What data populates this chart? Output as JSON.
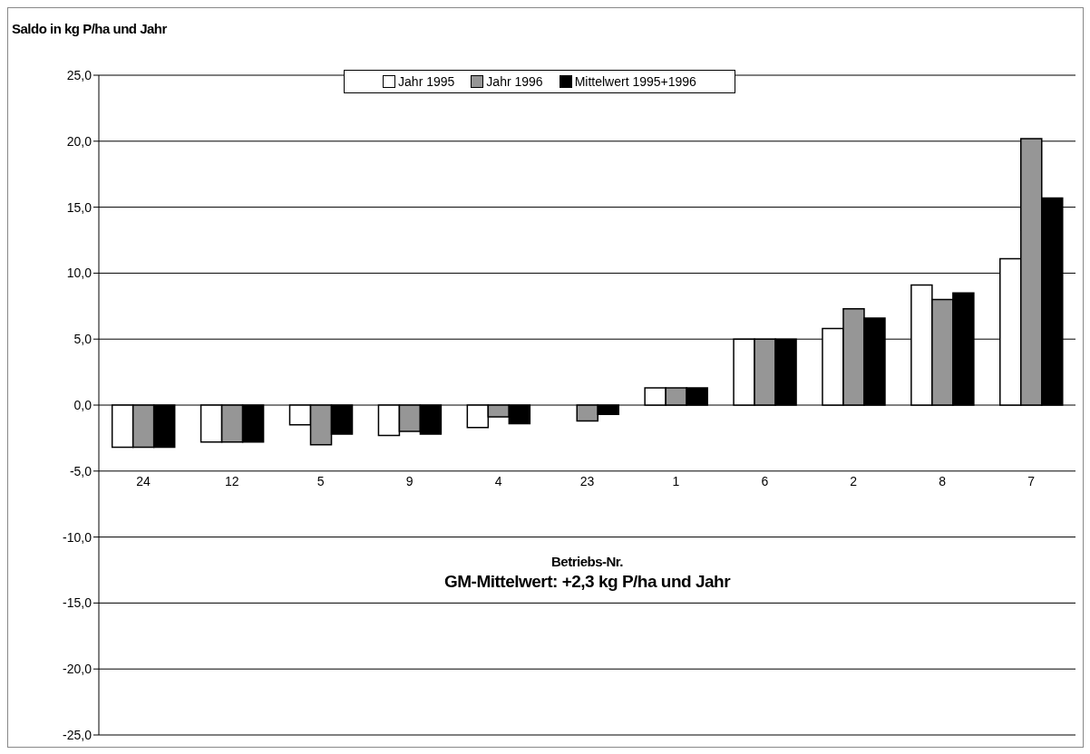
{
  "chart_data": {
    "type": "bar",
    "ylabel": "Saldo in kg P/ha und Jahr",
    "xlabel": "Betriebs-Nr.",
    "categories": [
      "24",
      "12",
      "5",
      "9",
      "4",
      "23",
      "1",
      "6",
      "2",
      "8",
      "7"
    ],
    "series": [
      {
        "name": "Jahr 1995",
        "color": "#ffffff",
        "values": [
          -3.2,
          -2.8,
          -1.5,
          -2.3,
          -1.7,
          0,
          1.3,
          5.0,
          5.8,
          9.1,
          11.1
        ]
      },
      {
        "name": "Jahr 1996",
        "color": "#969696",
        "values": [
          -3.2,
          -2.8,
          -3.0,
          -2.0,
          -0.9,
          -1.2,
          1.3,
          5.0,
          7.3,
          8.0,
          20.2
        ]
      },
      {
        "name": "Mittelwert 1995+1996",
        "color": "#000000",
        "values": [
          -3.2,
          -2.8,
          -2.2,
          -2.2,
          -1.4,
          -0.7,
          1.3,
          5.0,
          6.6,
          8.5,
          15.7
        ]
      }
    ],
    "ylim": [
      -25,
      25
    ],
    "yticks": [
      {
        "value": -25,
        "label": "-25,0"
      },
      {
        "value": -20,
        "label": "-20,0"
      },
      {
        "value": -15,
        "label": "-15,0"
      },
      {
        "value": -10,
        "label": "-10,0"
      },
      {
        "value": -5,
        "label": "-5,0"
      },
      {
        "value": 0,
        "label": "0,0"
      },
      {
        "value": 5,
        "label": "5,0"
      },
      {
        "value": 10,
        "label": "10,0"
      },
      {
        "value": 15,
        "label": "15,0"
      },
      {
        "value": 20,
        "label": "20,0"
      },
      {
        "value": 25,
        "label": "25,0"
      }
    ],
    "grid": "y",
    "legend": "top",
    "annotations": [
      "GM-Mittelwert: +2,3 kg P/ha und Jahr"
    ]
  }
}
